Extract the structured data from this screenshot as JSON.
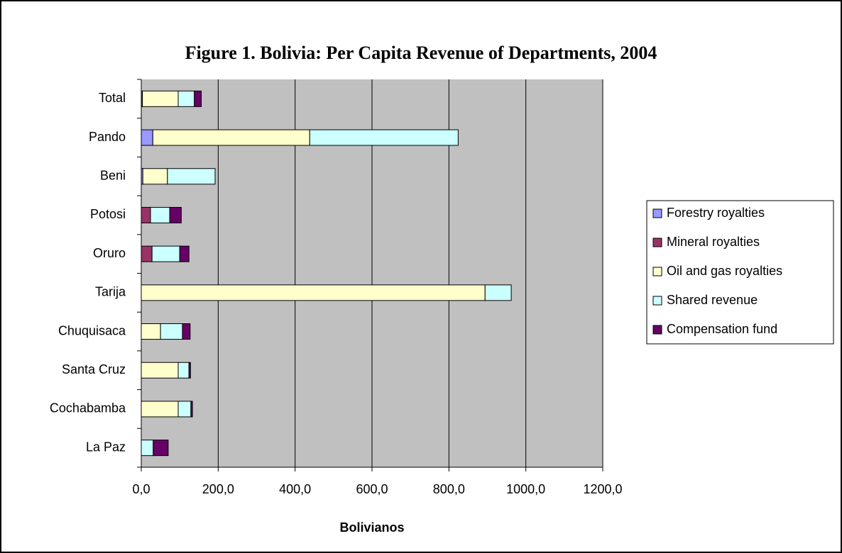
{
  "chart_data": {
    "type": "stacked-bar-horizontal",
    "title": "Figure 1. Bolivia: Per Capita Revenue of Departments, 2004",
    "x_label": "Bolivianos",
    "categories": [
      "Total",
      "Pando",
      "Beni",
      "Potosi",
      "Oruro",
      "Tarija",
      "Chuquisaca",
      "Santa Cruz",
      "Cochabamba",
      "La Paz"
    ],
    "series": [
      {
        "name": "Forestry royalties",
        "color": "#9999ff",
        "values": [
          0,
          30,
          4,
          0,
          0,
          0,
          0,
          0,
          0,
          0
        ]
      },
      {
        "name": "Mineral royalties",
        "color": "#993366",
        "values": [
          3,
          0,
          0,
          24,
          28,
          0,
          0,
          0,
          0,
          0
        ]
      },
      {
        "name": "Oil and gas royalties",
        "color": "#ffffcc",
        "values": [
          93,
          408,
          64,
          0,
          0,
          894,
          50,
          96,
          96,
          0
        ]
      },
      {
        "name": "Shared revenue",
        "color": "#ccffff",
        "values": [
          42,
          386,
          124,
          50,
          72,
          68,
          57,
          28,
          33,
          31
        ]
      },
      {
        "name": "Compensation fund",
        "color": "#660066",
        "values": [
          18,
          0,
          0,
          30,
          24,
          0,
          20,
          4,
          4,
          39
        ]
      }
    ],
    "xlim": [
      0,
      1200
    ],
    "xticks": [
      {
        "value": 0,
        "label": "0,0"
      },
      {
        "value": 200,
        "label": "200,0"
      },
      {
        "value": 400,
        "label": "400,0"
      },
      {
        "value": 600,
        "label": "600,0"
      },
      {
        "value": 800,
        "label": "800,0"
      },
      {
        "value": 1000,
        "label": "1000,0"
      },
      {
        "value": 1200,
        "label": "1200,0"
      }
    ],
    "grid": true,
    "legend": "right"
  }
}
